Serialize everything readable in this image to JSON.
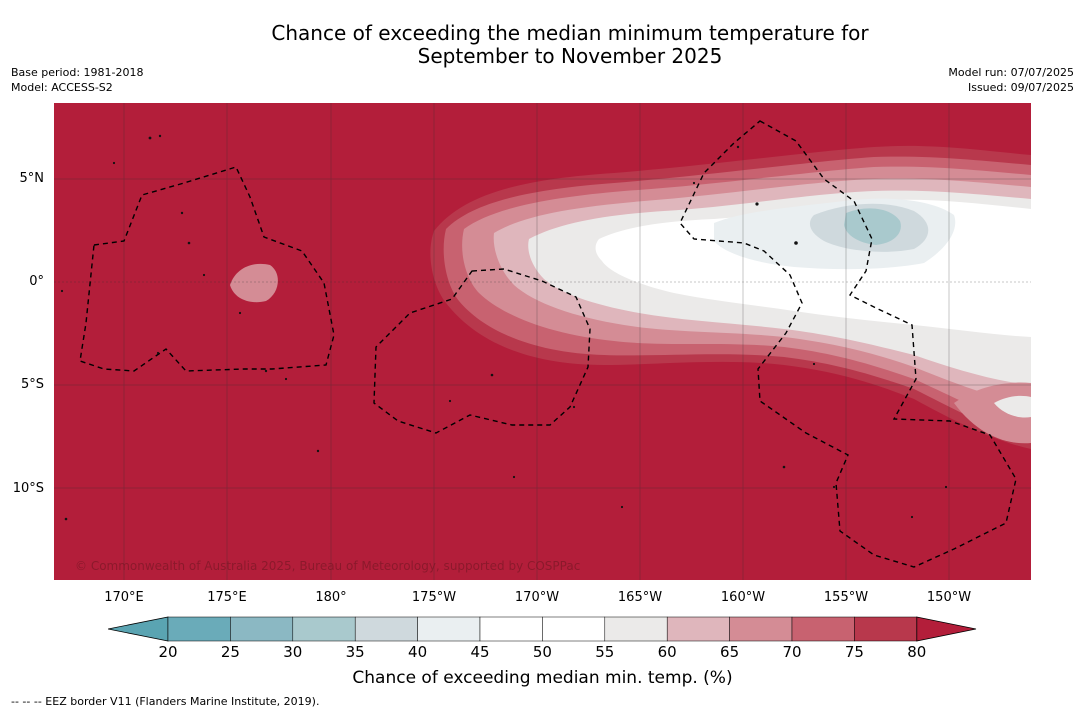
{
  "title_line1": "Chance of exceeding the median minimum temperature for",
  "title_line2": "September to November 2025",
  "meta_left": {
    "base_period": "Base period: 1981-2018",
    "model": "Model: ACCESS-S2"
  },
  "meta_right": {
    "model_run": "Model run: 07/07/2025",
    "issued": "Issued: 09/07/2025"
  },
  "lat_labels": [
    "5°N",
    "0°",
    "5°S",
    "10°S"
  ],
  "lon_labels": [
    "170°E",
    "175°E",
    "180°",
    "175°W",
    "170°W",
    "165°W",
    "160°W",
    "155°W",
    "150°W"
  ],
  "copyright": "© Commonwealth of Australia 2025, Bureau of Meteorology, supported by COSPPac",
  "colorbar": {
    "ticks": [
      "20",
      "25",
      "30",
      "35",
      "40",
      "45",
      "50",
      "55",
      "60",
      "65",
      "70",
      "75",
      "80"
    ],
    "label": "Chance of exceeding median min. temp. (%)",
    "colors": [
      "#5aa4b2",
      "#6aabb9",
      "#8bb8c3",
      "#a9c9cd",
      "#cfd9dd",
      "#eaeff1",
      "#ffffff",
      "#ffffff",
      "#ebeae9",
      "#dfb6bc",
      "#d48c95",
      "#c86270",
      "#b8384c",
      "#b31e3a"
    ]
  },
  "footnote": "-- -- -- EEZ border V11 (Flanders Marine Institute, 2019)."
}
